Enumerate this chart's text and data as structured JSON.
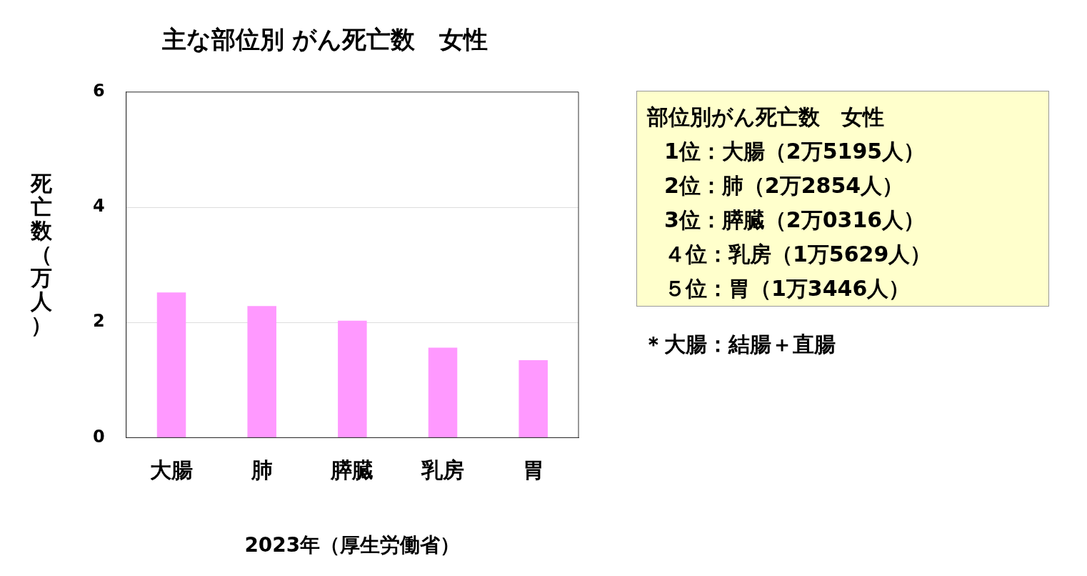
{
  "chart_data": {
    "type": "bar",
    "title": "主な部位別 がん死亡数　女性",
    "xlabel": "2023年（厚生労働省）",
    "ylabel": "死亡数（万人）",
    "categories": [
      "大腸",
      "肺",
      "膵臓",
      "乳房",
      "胃"
    ],
    "values": [
      2.5195,
      2.2854,
      2.0316,
      1.5629,
      1.3446
    ],
    "color": "#ff99ff",
    "ylim": [
      0,
      6
    ],
    "yticks": [
      0,
      2,
      4,
      6
    ],
    "grid": "y",
    "legend": false,
    "annotations": [
      "部位別がん死亡数　女性",
      "1位：大腸（2万5195人）",
      "2位：肺（2万2854人）",
      "3位：膵臓（2万0316人）",
      "４位：乳房（1万5629人）",
      "５位：胃（1万3446人）",
      "＊大腸：結腸＋直腸"
    ]
  }
}
